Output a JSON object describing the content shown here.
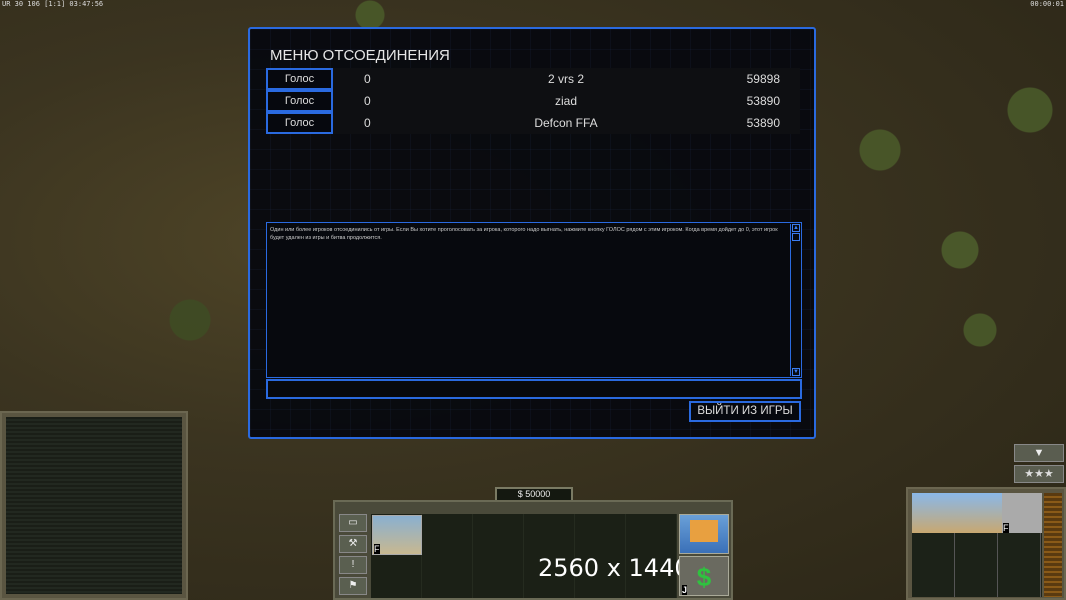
{
  "hud": {
    "top_left": "UR 30 106 [1:1] 03:47:56",
    "top_right": "00:00:01"
  },
  "dialog": {
    "title": "МЕНЮ ОТСОЕДИНЕНИЯ",
    "players": [
      {
        "vote_label": "Голос",
        "count": "0",
        "name": "2 vrs 2",
        "ping": "59898"
      },
      {
        "vote_label": "Голос",
        "count": "0",
        "name": "ziad",
        "ping": "53890"
      },
      {
        "vote_label": "Голос",
        "count": "0",
        "name": "Defcon FFA",
        "ping": "53890"
      }
    ],
    "message": "Один или более игроков отсоединились от игры. Если Вы хотите проголосовать за игрока, которого надо выгнать, нажмите кнопку ГОЛОС рядом с этим игроком. Когда время дойдет до 0, этот игрок будет удален из игры и битва продолжится.",
    "chat_input": "",
    "quit_label": "ВЫЙТИ ИЗ ИГРЫ"
  },
  "hud_bottom": {
    "money": "$ 50000",
    "resolution_overlay": "2560 x 1440",
    "portrait_hotkey": "F",
    "dollar_hotkey": "J",
    "radar_hotkey": "F",
    "side_icons": [
      "windows-icon",
      "wrench-icon",
      "alert-icon",
      "waypoint-icon"
    ],
    "rank_stars": "★★★"
  }
}
